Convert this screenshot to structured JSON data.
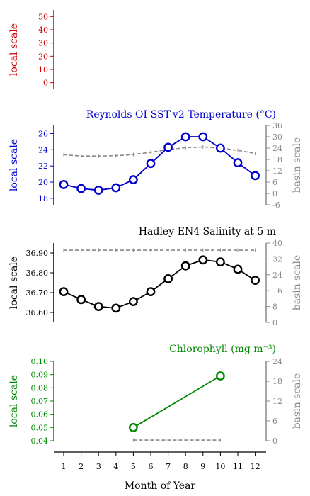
{
  "colors": {
    "top": "#cc0000",
    "temperature": "#0000cc",
    "salinity": "#000000",
    "chlorophyll": "#008800",
    "basin": "#888888",
    "grid_axis": "#000000"
  },
  "x_axis": {
    "label": "Month of Year",
    "ticks": [
      1,
      2,
      3,
      4,
      5,
      6,
      7,
      8,
      9,
      10,
      11,
      12
    ]
  },
  "chart_data": [
    {
      "type": "line",
      "title": "",
      "ylabel": "local scale",
      "ylim": [
        -5,
        55
      ],
      "yticks": [
        0,
        10,
        20,
        30,
        40,
        50
      ],
      "color_key": "top",
      "series": [],
      "basin": null
    },
    {
      "type": "line",
      "title": "Reynolds OI-SST-v2 Temperature (°C)",
      "ylabel": "local scale",
      "ylabel_right": "basin scale",
      "ylim": [
        17.2,
        27.0
      ],
      "yticks": [
        18,
        20,
        22,
        24,
        26
      ],
      "ylim_right": [
        -6,
        36
      ],
      "yticks_right": [
        -6,
        0,
        6,
        12,
        18,
        24,
        30,
        36
      ],
      "color_key": "temperature",
      "x": [
        1,
        2,
        3,
        4,
        5,
        6,
        7,
        8,
        9,
        10,
        11,
        12
      ],
      "values": [
        19.7,
        19.2,
        19.0,
        19.3,
        20.3,
        22.3,
        24.3,
        25.6,
        25.6,
        24.2,
        22.4,
        20.8
      ],
      "basin_values": [
        20.5,
        19.8,
        19.8,
        20.0,
        20.6,
        21.8,
        23.2,
        24.2,
        24.6,
        24.0,
        22.8,
        21.2
      ]
    },
    {
      "type": "line",
      "title": "Hadley-EN4 Salinity at 5 m",
      "ylabel": "local scale",
      "ylabel_right": "basin scale",
      "ylim": [
        36.55,
        36.95
      ],
      "yticks": [
        36.6,
        36.7,
        36.8,
        36.9
      ],
      "yticklabels": [
        "36.60",
        "36.70",
        "36.80",
        "36.90"
      ],
      "ylim_right": [
        0,
        40
      ],
      "yticks_right": [
        0,
        8,
        16,
        24,
        32,
        40
      ],
      "color_key": "salinity",
      "x": [
        1,
        2,
        3,
        4,
        5,
        6,
        7,
        8,
        9,
        10,
        11,
        12
      ],
      "values": [
        36.705,
        36.665,
        36.63,
        36.622,
        36.655,
        36.705,
        36.77,
        36.835,
        36.865,
        36.855,
        36.818,
        36.762
      ],
      "basin_values": [
        36.4,
        36.4,
        36.4,
        36.4,
        36.4,
        36.4,
        36.4,
        36.4,
        36.4,
        36.4,
        36.4,
        36.4
      ]
    },
    {
      "type": "line",
      "title": "Chlorophyll (mg m⁻³)",
      "ylabel": "local scale",
      "ylabel_right": "basin scale",
      "ylim": [
        0.04,
        0.1
      ],
      "yticks": [
        0.04,
        0.05,
        0.06,
        0.07,
        0.08,
        0.09,
        0.1
      ],
      "yticklabels": [
        "0.04",
        "0.05",
        "0.06",
        "0.07",
        "0.08",
        "0.09",
        "0.10"
      ],
      "ylim_right": [
        0,
        24
      ],
      "yticks_right": [
        0,
        6,
        12,
        18,
        24
      ],
      "color_key": "chlorophyll",
      "x": [
        5,
        10
      ],
      "values": [
        0.05,
        0.089
      ],
      "basin_x": [
        5,
        10
      ],
      "basin_values": [
        0.2,
        0.2
      ]
    }
  ]
}
